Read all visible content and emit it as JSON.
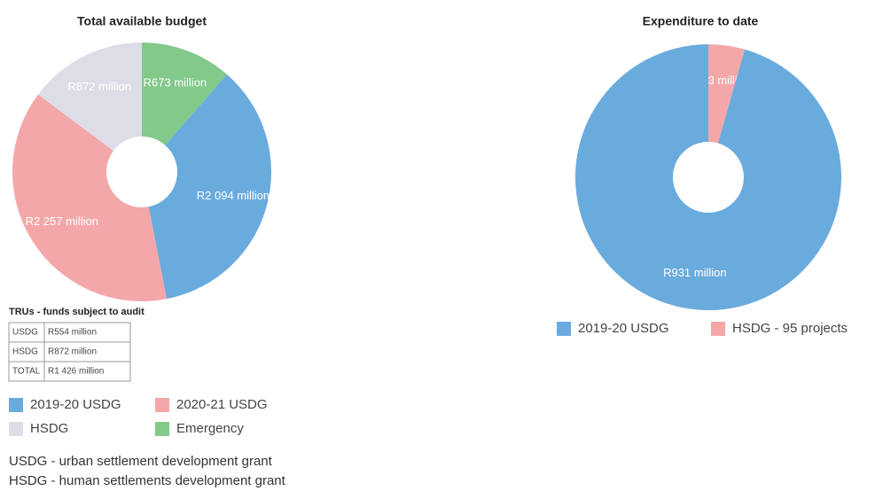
{
  "chart_data": [
    {
      "type": "donut",
      "title": "Total available budget",
      "categories": [
        "Emergency",
        "2019-20 USDG",
        "2020-21 USDG",
        "HSDG"
      ],
      "values": [
        673,
        2094,
        2257,
        872
      ],
      "value_labels": [
        "R673 million",
        "R2 094 million",
        "R2 257 million",
        "R872 million"
      ],
      "colors": [
        "#82c98a",
        "#6aabde",
        "#f4a7a9",
        "#dcdde6"
      ]
    },
    {
      "type": "donut",
      "title": "Expenditure to date",
      "categories": [
        "HSDG - 95 projects",
        "2019-20 USDG"
      ],
      "values": [
        43,
        931
      ],
      "value_labels": [
        "R43 million",
        "R931 million"
      ],
      "colors": [
        "#f4a7a9",
        "#6aabde"
      ]
    }
  ],
  "table": {
    "title": "TRUs - funds subject to audit",
    "rows": [
      [
        "USDG",
        "R554 million"
      ],
      [
        "HSDG",
        "R872 million"
      ],
      [
        "TOTAL",
        "R1 426 million"
      ]
    ]
  },
  "notes": [
    "USDG - urban settlement development grant",
    "HSDG - human settlements development grant"
  ]
}
